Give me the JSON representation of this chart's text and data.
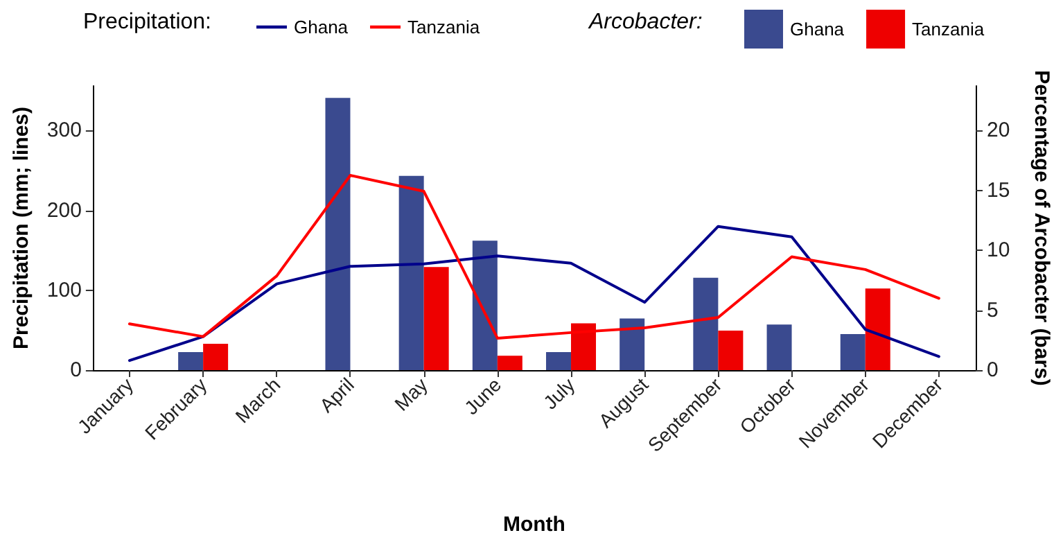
{
  "chart_data": {
    "type": "bar",
    "categories": [
      "January",
      "February",
      "March",
      "April",
      "May",
      "June",
      "July",
      "August",
      "September",
      "October",
      "November",
      "December"
    ],
    "xlabel": "Month",
    "ylabel": "Precipitation (mm; lines)",
    "y2label": "Percentage of Arcobacter (bars)",
    "legend_title": "Precipitation:",
    "annotations": [
      "Arcobacter:"
    ],
    "series": [
      {
        "name": "Ghana",
        "type": "line",
        "color": "#00008b",
        "values": [
          12,
          42,
          108,
          130,
          133,
          143,
          134,
          85,
          180,
          167,
          51,
          17
        ]
      },
      {
        "name": "Tanzania",
        "type": "line",
        "color": "#ff0000",
        "values": [
          58,
          42,
          118,
          244,
          224,
          40,
          47,
          53,
          66,
          142,
          126,
          90
        ]
      },
      {
        "name": "Ghana",
        "axis": "y2",
        "color": "#3a4a8f",
        "values": [
          0,
          1.5,
          0,
          22.7,
          16.2,
          10.8,
          1.5,
          4.3,
          7.7,
          3.8,
          3.0,
          0
        ]
      },
      {
        "name": "Tanzania",
        "axis": "y2",
        "color": "#ee0000",
        "values": [
          0,
          2.2,
          0,
          0,
          8.6,
          1.2,
          3.9,
          0,
          3.3,
          0,
          6.8,
          0
        ]
      }
    ],
    "ylim": [
      0,
      356
    ],
    "yticks": [
      0,
      100,
      200,
      300
    ],
    "y2lim": [
      0,
      23.7
    ],
    "y2ticks": [
      0,
      5,
      10,
      15,
      20
    ],
    "grid": false,
    "legend": "top",
    "marker": "none",
    "line_style": "solid"
  }
}
